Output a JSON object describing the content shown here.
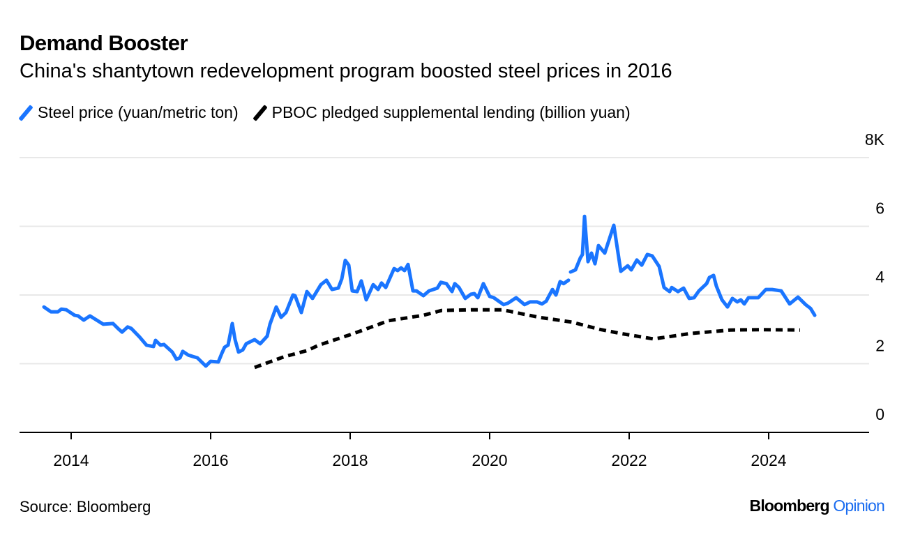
{
  "header": {
    "title": "Demand Booster",
    "subtitle": "China's shantytown redevelopment program boosted steel prices in 2016"
  },
  "footer": {
    "source": "Source: Bloomberg",
    "logo_brand": "Bloomberg",
    "logo_suffix": "Opinion"
  },
  "chart_data": {
    "type": "line",
    "legend_placement": "top-left",
    "grid": true,
    "ylim": [
      0,
      8
    ],
    "xlim": [
      2013.0,
      2025.2
    ],
    "y_ticks": [
      {
        "value": 0,
        "label": "0"
      },
      {
        "value": 2,
        "label": "2"
      },
      {
        "value": 4,
        "label": "4"
      },
      {
        "value": 6,
        "label": "6"
      },
      {
        "value": 8,
        "label": "8K"
      }
    ],
    "x_ticks": [
      {
        "value": 2014,
        "label": "2014"
      },
      {
        "value": 2016,
        "label": "2016"
      },
      {
        "value": 2018,
        "label": "2018"
      },
      {
        "value": 2020,
        "label": "2020"
      },
      {
        "value": 2022,
        "label": "2022"
      },
      {
        "value": 2024,
        "label": "2024"
      }
    ],
    "series": [
      {
        "name": "Steel price (yuan/metric ton)",
        "color": "#1a75ff",
        "style": "solid",
        "points": [
          [
            2013.61,
            3.65
          ],
          [
            2013.71,
            3.51
          ],
          [
            2013.81,
            3.51
          ],
          [
            2013.86,
            3.59
          ],
          [
            2013.93,
            3.57
          ],
          [
            2014.05,
            3.41
          ],
          [
            2014.1,
            3.39
          ],
          [
            2014.18,
            3.27
          ],
          [
            2014.27,
            3.39
          ],
          [
            2014.38,
            3.25
          ],
          [
            2014.46,
            3.15
          ],
          [
            2014.6,
            3.17
          ],
          [
            2014.68,
            3.01
          ],
          [
            2014.73,
            2.92
          ],
          [
            2014.81,
            3.07
          ],
          [
            2014.86,
            3.03
          ],
          [
            2014.98,
            2.78
          ],
          [
            2015.08,
            2.54
          ],
          [
            2015.18,
            2.5
          ],
          [
            2015.21,
            2.68
          ],
          [
            2015.28,
            2.54
          ],
          [
            2015.33,
            2.56
          ],
          [
            2015.45,
            2.34
          ],
          [
            2015.51,
            2.13
          ],
          [
            2015.56,
            2.17
          ],
          [
            2015.6,
            2.36
          ],
          [
            2015.68,
            2.25
          ],
          [
            2015.81,
            2.17
          ],
          [
            2015.93,
            1.93
          ],
          [
            2016.0,
            2.07
          ],
          [
            2016.11,
            2.05
          ],
          [
            2016.16,
            2.3
          ],
          [
            2016.2,
            2.48
          ],
          [
            2016.25,
            2.54
          ],
          [
            2016.31,
            3.17
          ],
          [
            2016.35,
            2.7
          ],
          [
            2016.4,
            2.34
          ],
          [
            2016.46,
            2.4
          ],
          [
            2016.51,
            2.58
          ],
          [
            2016.63,
            2.7
          ],
          [
            2016.71,
            2.58
          ],
          [
            2016.81,
            2.8
          ],
          [
            2016.85,
            3.15
          ],
          [
            2016.94,
            3.65
          ],
          [
            2017.01,
            3.35
          ],
          [
            2017.08,
            3.49
          ],
          [
            2017.18,
            4.0
          ],
          [
            2017.21,
            3.98
          ],
          [
            2017.3,
            3.49
          ],
          [
            2017.38,
            4.1
          ],
          [
            2017.46,
            3.9
          ],
          [
            2017.58,
            4.3
          ],
          [
            2017.66,
            4.43
          ],
          [
            2017.74,
            4.16
          ],
          [
            2017.83,
            4.2
          ],
          [
            2017.88,
            4.47
          ],
          [
            2017.93,
            5.01
          ],
          [
            2017.98,
            4.87
          ],
          [
            2018.03,
            4.12
          ],
          [
            2018.1,
            4.1
          ],
          [
            2018.16,
            4.41
          ],
          [
            2018.23,
            3.86
          ],
          [
            2018.33,
            4.3
          ],
          [
            2018.4,
            4.16
          ],
          [
            2018.45,
            4.35
          ],
          [
            2018.51,
            4.22
          ],
          [
            2018.63,
            4.77
          ],
          [
            2018.68,
            4.71
          ],
          [
            2018.73,
            4.79
          ],
          [
            2018.78,
            4.71
          ],
          [
            2018.83,
            4.89
          ],
          [
            2018.9,
            4.12
          ],
          [
            2018.95,
            4.12
          ],
          [
            2019.05,
            3.98
          ],
          [
            2019.13,
            4.12
          ],
          [
            2019.25,
            4.2
          ],
          [
            2019.3,
            4.37
          ],
          [
            2019.38,
            4.33
          ],
          [
            2019.46,
            4.1
          ],
          [
            2019.5,
            4.33
          ],
          [
            2019.56,
            4.22
          ],
          [
            2019.65,
            3.9
          ],
          [
            2019.73,
            4.02
          ],
          [
            2019.78,
            4.04
          ],
          [
            2019.83,
            3.92
          ],
          [
            2019.91,
            4.33
          ],
          [
            2020.0,
            3.96
          ],
          [
            2020.06,
            3.92
          ],
          [
            2020.2,
            3.72
          ],
          [
            2020.26,
            3.76
          ],
          [
            2020.38,
            3.92
          ],
          [
            2020.5,
            3.72
          ],
          [
            2020.58,
            3.8
          ],
          [
            2020.68,
            3.8
          ],
          [
            2020.75,
            3.74
          ],
          [
            2020.81,
            3.82
          ],
          [
            2020.9,
            4.16
          ],
          [
            2020.95,
            4.0
          ],
          [
            2021.01,
            4.39
          ],
          [
            2021.06,
            4.33
          ],
          [
            2021.13,
            4.43
          ],
          null,
          [
            2021.16,
            4.67
          ],
          [
            2021.23,
            4.73
          ],
          [
            2021.3,
            5.08
          ],
          [
            2021.33,
            5.18
          ],
          [
            2021.36,
            6.29
          ],
          [
            2021.41,
            4.97
          ],
          [
            2021.46,
            5.22
          ],
          [
            2021.51,
            4.91
          ],
          [
            2021.56,
            5.44
          ],
          [
            2021.65,
            5.22
          ],
          [
            2021.78,
            6.03
          ],
          [
            2021.88,
            4.69
          ],
          [
            2021.98,
            4.85
          ],
          [
            2022.03,
            4.73
          ],
          [
            2022.11,
            5.02
          ],
          [
            2022.18,
            4.87
          ],
          [
            2022.26,
            5.18
          ],
          [
            2022.33,
            5.14
          ],
          [
            2022.43,
            4.83
          ],
          [
            2022.5,
            4.22
          ],
          [
            2022.58,
            4.1
          ],
          [
            2022.61,
            4.22
          ],
          [
            2022.7,
            4.1
          ],
          [
            2022.78,
            4.2
          ],
          [
            2022.86,
            3.9
          ],
          [
            2022.93,
            3.92
          ],
          [
            2023.0,
            4.12
          ],
          [
            2023.11,
            4.33
          ],
          [
            2023.15,
            4.51
          ],
          [
            2023.21,
            4.57
          ],
          [
            2023.25,
            4.26
          ],
          [
            2023.33,
            3.86
          ],
          [
            2023.41,
            3.65
          ],
          [
            2023.48,
            3.9
          ],
          [
            2023.55,
            3.8
          ],
          [
            2023.6,
            3.86
          ],
          [
            2023.65,
            3.74
          ],
          [
            2023.71,
            3.92
          ],
          [
            2023.85,
            3.92
          ],
          [
            2023.96,
            4.16
          ],
          [
            2024.05,
            4.16
          ],
          [
            2024.18,
            4.12
          ],
          [
            2024.3,
            3.74
          ],
          [
            2024.42,
            3.94
          ],
          [
            2024.53,
            3.72
          ],
          [
            2024.6,
            3.61
          ],
          [
            2024.66,
            3.41
          ]
        ]
      },
      {
        "name": "PBOC pledged supplemental lending (billion yuan)",
        "color": "#000000",
        "style": "dotted",
        "points": [
          [
            2016.63,
            1.89
          ],
          [
            2017.05,
            2.2
          ],
          [
            2017.38,
            2.38
          ],
          [
            2017.55,
            2.54
          ],
          [
            2018.05,
            2.88
          ],
          [
            2018.55,
            3.25
          ],
          [
            2019.05,
            3.41
          ],
          [
            2019.31,
            3.55
          ],
          [
            2019.75,
            3.57
          ],
          [
            2020.18,
            3.57
          ],
          [
            2020.71,
            3.35
          ],
          [
            2021.18,
            3.21
          ],
          [
            2021.58,
            3.0
          ],
          [
            2021.88,
            2.88
          ],
          [
            2022.35,
            2.72
          ],
          [
            2022.88,
            2.88
          ],
          [
            2023.45,
            2.98
          ],
          [
            2023.9,
            2.99
          ],
          [
            2024.45,
            2.98
          ]
        ]
      }
    ]
  }
}
